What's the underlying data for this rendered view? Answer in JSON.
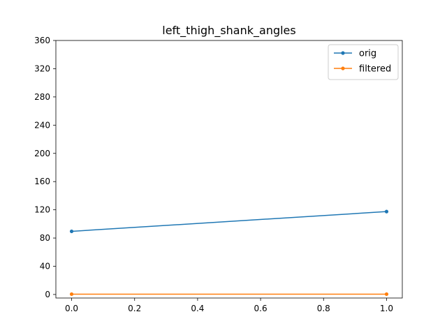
{
  "chart_data": {
    "type": "line",
    "title": "left_thigh_shank_angles",
    "xlabel": "",
    "ylabel": "",
    "xlim": [
      -0.05,
      1.05
    ],
    "ylim": [
      -5,
      360
    ],
    "xticks": [
      0.0,
      0.2,
      0.4,
      0.6,
      0.8,
      1.0
    ],
    "xtick_labels": [
      "0.0",
      "0.2",
      "0.4",
      "0.6",
      "0.8",
      "1.0"
    ],
    "yticks": [
      0,
      40,
      80,
      120,
      160,
      200,
      240,
      280,
      320,
      360
    ],
    "ytick_labels": [
      "0",
      "40",
      "80",
      "120",
      "160",
      "200",
      "240",
      "280",
      "320",
      "360"
    ],
    "grid": false,
    "legend_position": "top-right",
    "series": [
      {
        "name": "orig",
        "color": "#1f77b4",
        "x": [
          0,
          1
        ],
        "y": [
          89.5,
          117.5
        ]
      },
      {
        "name": "filtered",
        "color": "#ff7f0e",
        "x": [
          0,
          1
        ],
        "y": [
          0.5,
          0.5
        ]
      }
    ]
  }
}
